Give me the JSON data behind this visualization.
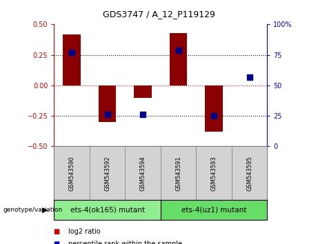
{
  "title": "GDS3747 / A_12_P119129",
  "samples": [
    "GSM543590",
    "GSM543592",
    "GSM543594",
    "GSM543591",
    "GSM543593",
    "GSM543595"
  ],
  "log2_ratio": [
    0.42,
    -0.3,
    -0.1,
    0.43,
    -0.38,
    0.0
  ],
  "percentile_rank": [
    77,
    26,
    26,
    79,
    25,
    57
  ],
  "groups": [
    {
      "label": "ets-4(ok165) mutant",
      "samples": [
        0,
        1,
        2
      ],
      "color": "#90EE90"
    },
    {
      "label": "ets-4(uz1) mutant",
      "samples": [
        3,
        4,
        5
      ],
      "color": "#66DD66"
    }
  ],
  "ylim_left": [
    -0.5,
    0.5
  ],
  "ylim_right": [
    0,
    100
  ],
  "yticks_left": [
    -0.5,
    -0.25,
    0,
    0.25,
    0.5
  ],
  "yticks_right": [
    0,
    25,
    50,
    75,
    100
  ],
  "bar_color": "#8B0000",
  "dot_color": "#00008B",
  "zero_line_color": "#cc0000",
  "bg_color": "#ffffff",
  "plot_bg_color": "#ffffff",
  "tick_label_color_left": "#cc0000",
  "tick_label_color_right": "#0000cc",
  "legend_log2_color": "#cc0000",
  "legend_pct_color": "#0000cc",
  "xlabel_area_color": "#d3d3d3",
  "genotype_label": "genotype/variation",
  "bar_width": 0.5,
  "dot_size": 30,
  "title_fontsize": 9,
  "tick_fontsize": 7,
  "sample_fontsize": 6,
  "group_fontsize": 7.5,
  "legend_fontsize": 7
}
